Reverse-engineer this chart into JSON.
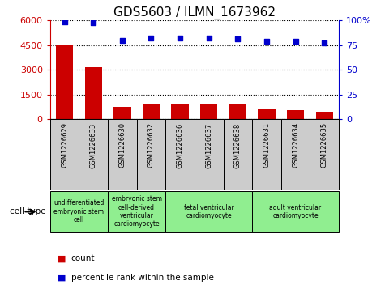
{
  "title": "GDS5603 / ILMN_1673962",
  "samples": [
    "GSM1226629",
    "GSM1226633",
    "GSM1226630",
    "GSM1226632",
    "GSM1226636",
    "GSM1226637",
    "GSM1226638",
    "GSM1226631",
    "GSM1226634",
    "GSM1226635"
  ],
  "counts": [
    4500,
    3180,
    720,
    920,
    870,
    920,
    870,
    580,
    560,
    430
  ],
  "percentiles": [
    98.5,
    97.5,
    80,
    82,
    82.5,
    82.5,
    81.5,
    79,
    79,
    77
  ],
  "ylim_left": [
    0,
    6000
  ],
  "ylim_right": [
    0,
    100
  ],
  "yticks_left": [
    0,
    1500,
    3000,
    4500,
    6000
  ],
  "yticks_right": [
    0,
    25,
    50,
    75,
    100
  ],
  "cell_types": [
    {
      "label": "undifferentiated\nembryonic stem\ncell",
      "indices": [
        0,
        1
      ],
      "color": "#90ee90"
    },
    {
      "label": "embryonic stem\ncell-derived\nventricular\ncardiomyocyte",
      "indices": [
        2,
        3
      ],
      "color": "#90ee90"
    },
    {
      "label": "fetal ventricular\ncardiomyocyte",
      "indices": [
        4,
        5,
        6
      ],
      "color": "#90ee90"
    },
    {
      "label": "adult ventricular\ncardiomyocyte",
      "indices": [
        7,
        8,
        9
      ],
      "color": "#90ee90"
    }
  ],
  "bar_color": "#cc0000",
  "dot_color": "#0000cc",
  "grid_color": "#000000",
  "tick_color_left": "#cc0000",
  "tick_color_right": "#0000cc",
  "cell_type_label": "cell type",
  "legend_count_label": "count",
  "legend_percentile_label": "percentile rank within the sample",
  "sample_bg_color": "#cccccc",
  "fig_width": 4.75,
  "fig_height": 3.63,
  "dpi": 100
}
